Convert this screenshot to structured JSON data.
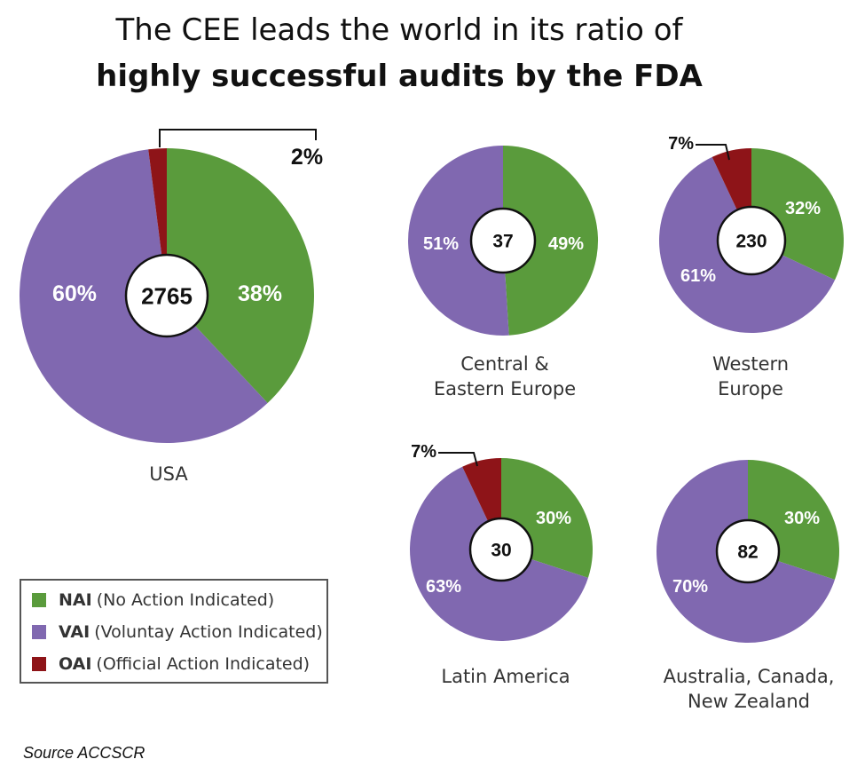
{
  "title": {
    "line1": "The CEE leads the world in its ratio of",
    "line2": "highly successful audits by the FDA"
  },
  "colors": {
    "NAI": "#5a9b3c",
    "VAI": "#8068b0",
    "OAI": "#8e1418"
  },
  "legend": [
    {
      "code": "NAI",
      "text": "(No Action Indicated)",
      "color": "#5a9b3c"
    },
    {
      "code": "VAI",
      "text": "(Voluntay Action Indicated)",
      "color": "#8068b0"
    },
    {
      "code": "OAI",
      "text": "(Official Action Indicated)",
      "color": "#8e1418"
    }
  ],
  "source": "Source ACCSCR",
  "chart_data": [
    {
      "type": "pie",
      "region": "USA",
      "total": "2765",
      "slices": [
        {
          "category": "NAI",
          "value": 38,
          "label": "38%"
        },
        {
          "category": "VAI",
          "value": 60,
          "label": "60%"
        },
        {
          "category": "OAI",
          "value": 2,
          "label": "2%"
        }
      ]
    },
    {
      "type": "pie",
      "region": "Central & Eastern Europe",
      "total": "37",
      "slices": [
        {
          "category": "NAI",
          "value": 49,
          "label": "49%"
        },
        {
          "category": "VAI",
          "value": 51,
          "label": "51%"
        }
      ]
    },
    {
      "type": "pie",
      "region": "Western Europe",
      "total": "230",
      "slices": [
        {
          "category": "NAI",
          "value": 32,
          "label": "32%"
        },
        {
          "category": "VAI",
          "value": 61,
          "label": "61%"
        },
        {
          "category": "OAI",
          "value": 7,
          "label": "7%"
        }
      ]
    },
    {
      "type": "pie",
      "region": "Latin America",
      "total": "30",
      "slices": [
        {
          "category": "NAI",
          "value": 30,
          "label": "30%"
        },
        {
          "category": "VAI",
          "value": 63,
          "label": "63%"
        },
        {
          "category": "OAI",
          "value": 7,
          "label": "7%"
        }
      ]
    },
    {
      "type": "pie",
      "region": "Australia, Canada, New Zealand",
      "total": "82",
      "slices": [
        {
          "category": "NAI",
          "value": 30,
          "label": "30%"
        },
        {
          "category": "VAI",
          "value": 70,
          "label": "70%"
        }
      ]
    }
  ]
}
